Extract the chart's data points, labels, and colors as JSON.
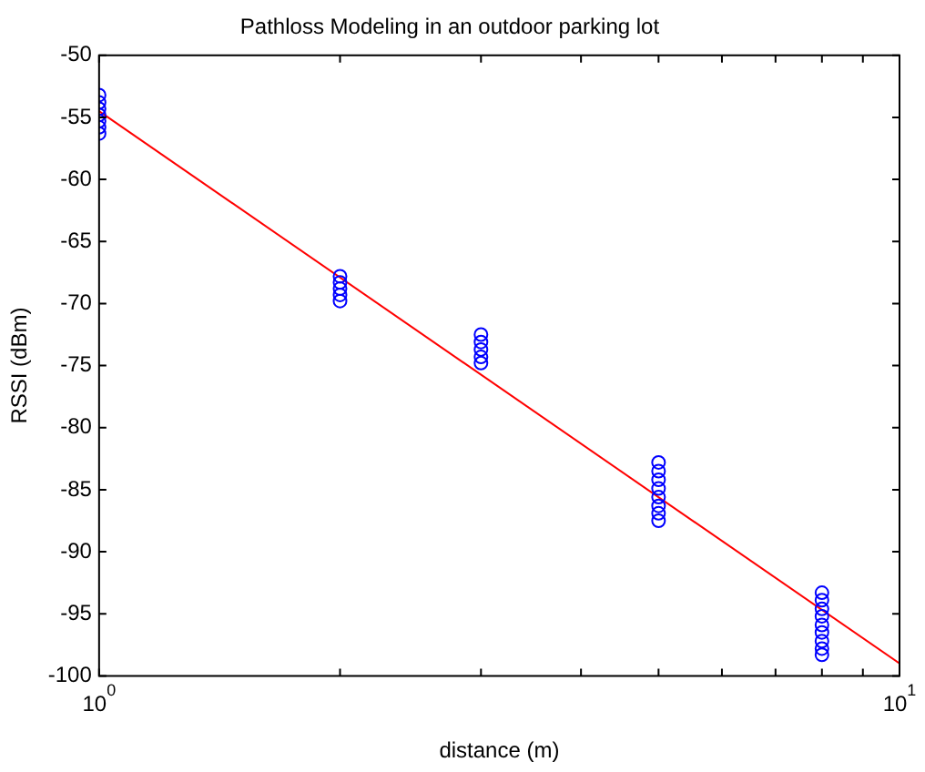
{
  "chart_data": {
    "type": "scatter",
    "title": "Pathloss Modeling in an outdoor parking lot",
    "xlabel": "distance (m)",
    "ylabel": "RSSI (dBm)",
    "log": "x",
    "xlim": [
      1,
      10
    ],
    "ylim": [
      -100,
      -50
    ],
    "xticks": [
      {
        "value": 1,
        "label": "10$^{0}$"
      },
      {
        "value": 2,
        "label": null
      },
      {
        "value": 3,
        "label": null
      },
      {
        "value": 4,
        "label": null
      },
      {
        "value": 5,
        "label": null
      },
      {
        "value": 6,
        "label": null
      },
      {
        "value": 7,
        "label": null
      },
      {
        "value": 8,
        "label": null
      },
      {
        "value": 9,
        "label": null
      },
      {
        "value": 10,
        "label": "10$^{1}$"
      }
    ],
    "yticks": [
      -100,
      -95,
      -90,
      -85,
      -80,
      -75,
      -70,
      -65,
      -60,
      -55,
      -50
    ],
    "grid": false,
    "legend": false,
    "series": [
      {
        "type": "scatter",
        "color": "#0000ff",
        "marker": "circle",
        "x": [
          1,
          1,
          1,
          1,
          1,
          1,
          1,
          2,
          2,
          2,
          2,
          2,
          3,
          3,
          3,
          3,
          3,
          5,
          5,
          5,
          5,
          5,
          5,
          5,
          5,
          8,
          8,
          8,
          8,
          8,
          8,
          8,
          8,
          8
        ],
        "values": [
          -53.2,
          -53.8,
          -54.3,
          -54.8,
          -55.3,
          -55.8,
          -56.3,
          -67.8,
          -68.3,
          -68.8,
          -69.3,
          -69.8,
          -72.5,
          -73.1,
          -73.7,
          -74.3,
          -74.8,
          -82.8,
          -83.5,
          -84.2,
          -84.9,
          -85.6,
          -86.3,
          -86.9,
          -87.5,
          -93.3,
          -93.9,
          -94.6,
          -95.2,
          -95.9,
          -96.5,
          -97.2,
          -97.8,
          -98.3
        ]
      },
      {
        "type": "line",
        "color": "#ff0000",
        "marker": "none",
        "line_style": "solid",
        "x": [
          1,
          10
        ],
        "values": [
          -54.5,
          -99
        ]
      }
    ]
  }
}
